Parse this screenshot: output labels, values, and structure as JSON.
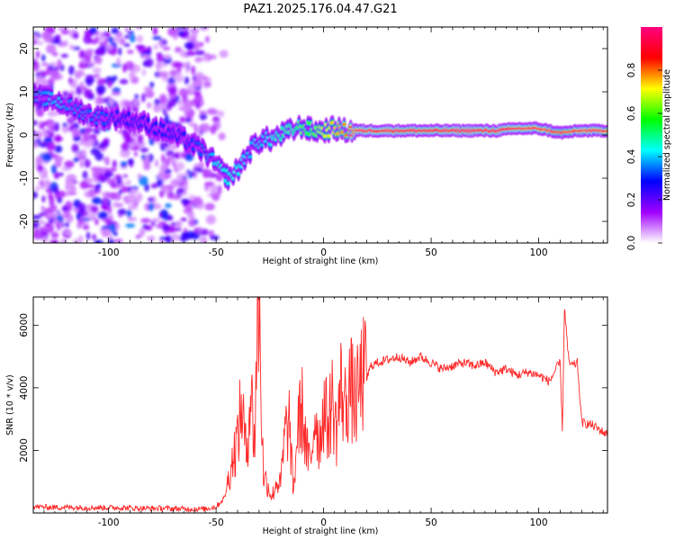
{
  "title": "PAZ1.2025.176.04.47.G21",
  "chart_data": [
    {
      "type": "heatmap",
      "xlabel": "Height of straight line (km)",
      "ylabel": "Frequency (Hz)",
      "xlim": [
        -135,
        132
      ],
      "ylim": [
        -25,
        25
      ],
      "xticks": [
        -100,
        -50,
        0,
        50,
        100
      ],
      "yticks": [
        -20,
        -10,
        0,
        10,
        20
      ],
      "colorbar": {
        "label": "Normalized spectral amplitude",
        "range": [
          0,
          1
        ],
        "ticks": [
          "0.0",
          "0.2",
          "0.4",
          "0.6",
          "0.8"
        ],
        "colors": [
          "#ffffff",
          "#a000ff",
          "#0000ff",
          "#00ffff",
          "#00ff00",
          "#ffff00",
          "#ff0000",
          "#ff0080"
        ]
      },
      "ridge": {
        "description_points_x": [
          -135,
          -125,
          -115,
          -105,
          -95,
          -85,
          -75,
          -65,
          -55,
          -48,
          -44,
          -40,
          -36,
          -32,
          -28,
          -24,
          -20,
          -15,
          -10,
          -5,
          0,
          5,
          10,
          15,
          20,
          40,
          60,
          80,
          90,
          100,
          110,
          120,
          132
        ],
        "description_points_y": [
          9,
          8,
          6,
          4,
          4,
          3,
          1,
          -1,
          -4,
          -8,
          -10,
          -8,
          -5,
          -2,
          -1,
          -1,
          0,
          1,
          2,
          1,
          1,
          1.5,
          1,
          1,
          1,
          1,
          1,
          1,
          1.5,
          1.5,
          0.5,
          1,
          1
        ],
        "peak_amplitude": [
          0.35,
          0.4,
          0.35,
          0.35,
          0.3,
          0.3,
          0.3,
          0.3,
          0.35,
          0.45,
          0.45,
          0.45,
          0.4,
          0.4,
          0.4,
          0.45,
          0.5,
          0.5,
          0.6,
          0.6,
          0.7,
          0.75,
          0.8,
          0.9,
          0.95,
          0.98,
          0.98,
          0.98,
          0.95,
          0.9,
          0.85,
          0.9,
          0.9
        ]
      }
    },
    {
      "type": "line",
      "xlabel": "Height of straight line (km)",
      "ylabel": "SNR (10 * v/v)",
      "xlim": [
        -135,
        132
      ],
      "ylim": [
        0,
        6900
      ],
      "xticks": [
        -100,
        -50,
        0,
        50,
        100
      ],
      "yticks": [
        2000,
        4000,
        6000
      ],
      "color": "#ff2a2a",
      "series": [
        {
          "x": [
            -135,
            -125,
            -115,
            -105,
            -95,
            -85,
            -75,
            -65,
            -55,
            -50,
            -46,
            -43,
            -40,
            -38,
            -36,
            -34,
            -32,
            -31,
            -30,
            -29,
            -28,
            -26,
            -24,
            -22,
            -20,
            -18,
            -16,
            -14,
            -12,
            -10,
            -8,
            -6,
            -4,
            -2,
            0,
            2,
            4,
            6,
            8,
            10,
            12,
            15,
            18,
            20,
            22,
            25,
            30,
            35,
            40,
            45,
            50,
            55,
            60,
            65,
            70,
            75,
            80,
            85,
            90,
            95,
            100,
            105,
            108,
            110,
            111,
            112,
            114,
            116,
            118,
            120,
            125,
            132
          ],
          "y": [
            200,
            180,
            180,
            170,
            170,
            150,
            150,
            130,
            130,
            200,
            500,
            1500,
            2400,
            3500,
            1800,
            4000,
            2200,
            6000,
            6800,
            3800,
            1200,
            900,
            500,
            1000,
            900,
            2500,
            2900,
            600,
            2800,
            3300,
            2000,
            1500,
            3300,
            2200,
            3400,
            2800,
            3600,
            2600,
            4000,
            3400,
            4100,
            3500,
            4400,
            4300,
            4700,
            4800,
            4900,
            5000,
            4800,
            5000,
            4800,
            4600,
            4700,
            4800,
            4700,
            4800,
            4500,
            4600,
            4400,
            4500,
            4400,
            4200,
            4600,
            4800,
            2600,
            6600,
            4800,
            4700,
            4800,
            2900,
            2800,
            2500
          ]
        }
      ]
    }
  ]
}
